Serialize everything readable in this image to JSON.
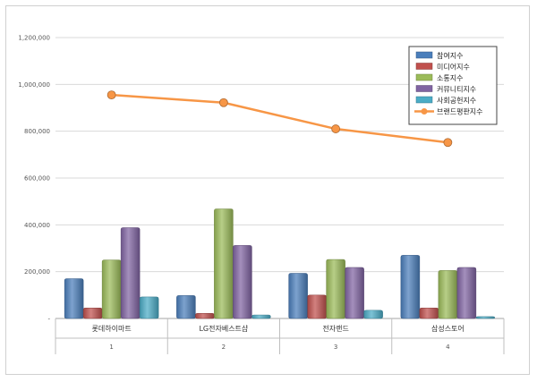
{
  "chart_data": {
    "type": "bar",
    "title": "",
    "xlabel": "",
    "ylabel": "",
    "ylim": [
      0,
      1200000
    ],
    "yticks": [
      "-",
      "200,000",
      "400,000",
      "600,000",
      "800,000",
      "1,000,000",
      "1,200,000"
    ],
    "categories": [
      "롯데하이마트",
      "LG전자베스트샵",
      "전자랜드",
      "삼성스토어"
    ],
    "category_numbers": [
      "1",
      "2",
      "3",
      "4"
    ],
    "grid": true,
    "legend_position": "top-right",
    "series": [
      {
        "name": "참여지수",
        "kind": "bar",
        "color": "#4a7ebb",
        "values": [
          170000,
          98000,
          193000,
          270000
        ]
      },
      {
        "name": "미디어지수",
        "kind": "bar",
        "color": "#c0504d",
        "values": [
          45000,
          22000,
          100000,
          45000
        ]
      },
      {
        "name": "소통지수",
        "kind": "bar",
        "color": "#9bbb59",
        "values": [
          250000,
          468000,
          252000,
          205000
        ]
      },
      {
        "name": "커뮤니티지수",
        "kind": "bar",
        "color": "#8064a2",
        "values": [
          388000,
          312000,
          218000,
          218000
        ]
      },
      {
        "name": "사회공헌지수",
        "kind": "bar",
        "color": "#4bacc6",
        "values": [
          92000,
          15000,
          35000,
          8000
        ]
      },
      {
        "name": "브랜드평판지수",
        "kind": "line",
        "color": "#f79646",
        "values": [
          955000,
          922000,
          810000,
          752000
        ]
      }
    ]
  }
}
